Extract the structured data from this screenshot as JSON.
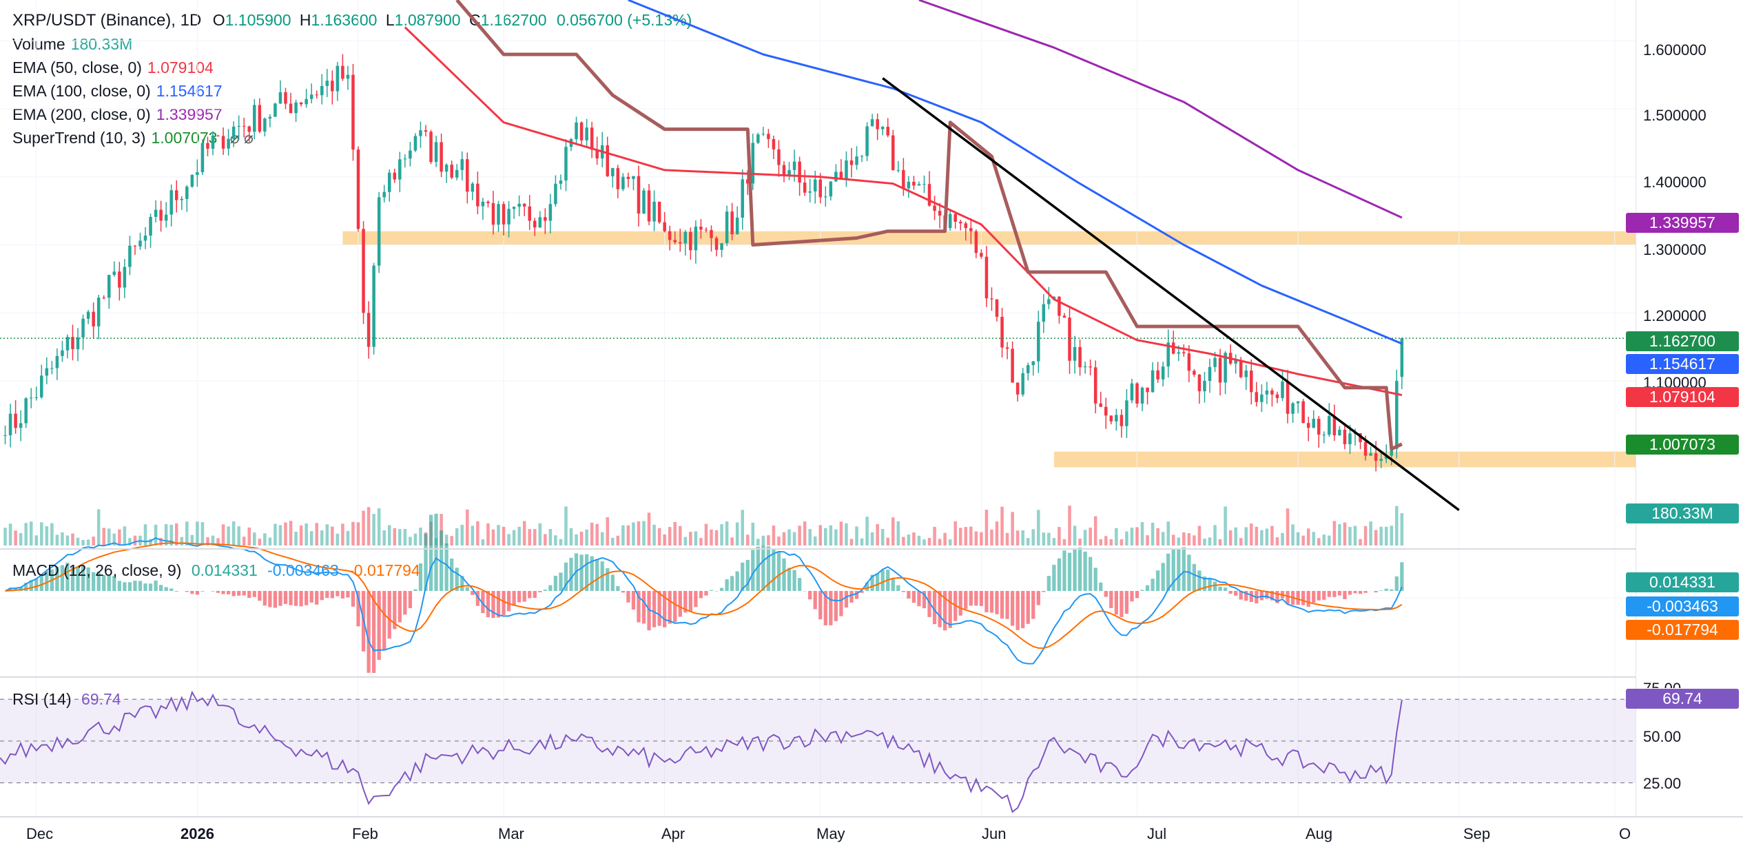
{
  "header": {
    "symbol_title": "XRP/USDT (Binance), 1D",
    "open_label": "O",
    "open": "1.105900",
    "high_label": "H",
    "high": "1.163600",
    "low_label": "L",
    "low": "1.087900",
    "close_label": "C",
    "close": "1.162700",
    "change": "0.056700 (+5.13%)"
  },
  "legend": {
    "volume": {
      "label": "Volume",
      "value": "180.33M",
      "color": "#26a69a"
    },
    "ema50": {
      "label": "EMA (50, close, 0)",
      "value": "1.079104",
      "color": "#f23645"
    },
    "ema100": {
      "label": "EMA (100, close, 0)",
      "value": "1.154617",
      "color": "#2962ff"
    },
    "ema200": {
      "label": "EMA (200, close, 0)",
      "value": "1.339957",
      "color": "#9c27b0"
    },
    "supertrend": {
      "label": "SuperTrend (10, 3)",
      "value": "1.007073",
      "color": "#1b8c2c",
      "icons": "⌀ ⌀"
    },
    "macd": {
      "label": "MACD (12, 26, close, 9)",
      "hist": "0.014331",
      "macd": "-0.003463",
      "signal": "-0.017794"
    },
    "rsi": {
      "label": "RSI (14)",
      "value": "69.74"
    }
  },
  "price_axis": [
    "1.600000",
    "1.500000",
    "1.400000",
    "1.300000",
    "1.200000",
    "1.100000"
  ],
  "price_tags": {
    "ema200": "1.339957",
    "close": "1.162700",
    "ema100": "1.154617",
    "ema50": "1.079104",
    "supertrend": "1.007073",
    "volume": "180.33M"
  },
  "macd_tags": {
    "hist": "0.014331",
    "macd": "-0.003463",
    "signal": "-0.017794"
  },
  "rsi_axis": [
    "75.00",
    "50.00",
    "25.00"
  ],
  "rsi_tag": "69.74",
  "time_axis": [
    "Dec",
    "2026",
    "Feb",
    "Mar",
    "Apr",
    "May",
    "Jun",
    "Jul",
    "Aug",
    "Sep",
    "O"
  ],
  "colors": {
    "up": "#26a69a",
    "down": "#f23645",
    "ema50": "#f23645",
    "ema100": "#2962ff",
    "ema200": "#9c27b0",
    "supertrend_up": "#6aa83d",
    "supertrend_down": "#a85c5c",
    "zone": "#fcd290",
    "macd_line": "#2196f3",
    "signal_line": "#ff6d00",
    "rsi_line": "#7e57c2"
  },
  "chart_data": [
    {
      "type": "candlestick",
      "title": "XRP/USDT (Binance), 1D",
      "ylim": [
        0.86,
        1.66
      ],
      "x_range": [
        "2025-11-24",
        "2026-10-05"
      ],
      "last_candle": {
        "date": "2026-08-21",
        "open": 1.1059,
        "high": 1.1636,
        "low": 1.0879,
        "close": 1.1627
      },
      "ohlc_anchors": [
        {
          "date": "2025-11-25",
          "close": 1.02
        },
        {
          "date": "2026-01-05",
          "close": 1.46
        },
        {
          "date": "2026-01-30",
          "close": 1.55
        },
        {
          "date": "2026-02-02",
          "close": 1.2
        },
        {
          "date": "2026-02-03",
          "close": 1.15
        },
        {
          "date": "2026-02-05",
          "close": 1.37
        },
        {
          "date": "2026-02-12",
          "close": 1.46
        },
        {
          "date": "2026-02-20",
          "close": 1.41
        },
        {
          "date": "2026-03-01",
          "close": 1.33
        },
        {
          "date": "2026-03-10",
          "close": 1.36
        },
        {
          "date": "2026-03-15",
          "close": 1.48
        },
        {
          "date": "2026-03-18",
          "close": 1.44
        },
        {
          "date": "2026-03-24",
          "close": 1.4
        },
        {
          "date": "2026-04-01",
          "close": 1.32
        },
        {
          "date": "2026-04-10",
          "close": 1.31
        },
        {
          "date": "2026-04-15",
          "close": 1.34
        },
        {
          "date": "2026-04-18",
          "close": 1.45
        },
        {
          "date": "2026-04-25",
          "close": 1.41
        },
        {
          "date": "2026-05-01",
          "close": 1.37
        },
        {
          "date": "2026-05-08",
          "close": 1.43
        },
        {
          "date": "2026-05-12",
          "close": 1.47
        },
        {
          "date": "2026-05-16",
          "close": 1.41
        },
        {
          "date": "2026-05-23",
          "close": 1.35
        },
        {
          "date": "2026-05-30",
          "close": 1.32
        },
        {
          "date": "2026-06-03",
          "close": 1.22
        },
        {
          "date": "2026-06-08",
          "close": 1.08
        },
        {
          "date": "2026-06-14",
          "close": 1.22
        },
        {
          "date": "2026-06-20",
          "close": 1.12
        },
        {
          "date": "2026-06-27",
          "close": 1.05
        },
        {
          "date": "2026-07-02",
          "close": 1.09
        },
        {
          "date": "2026-07-08",
          "close": 1.14
        },
        {
          "date": "2026-07-14",
          "close": 1.1
        },
        {
          "date": "2026-07-20",
          "close": 1.13
        },
        {
          "date": "2026-07-25",
          "close": 1.08
        },
        {
          "date": "2026-08-01",
          "close": 1.07
        },
        {
          "date": "2026-08-08",
          "close": 1.02
        },
        {
          "date": "2026-08-14",
          "close": 0.99
        },
        {
          "date": "2026-08-18",
          "close": 0.99
        },
        {
          "date": "2026-08-19",
          "close": 1.0
        },
        {
          "date": "2026-08-20",
          "close": 1.1
        },
        {
          "date": "2026-08-21",
          "close": 1.1627
        }
      ]
    },
    {
      "type": "line",
      "series": [
        {
          "name": "EMA (50, close, 0)",
          "points": [
            [
              "2026-02-10",
              1.62
            ],
            [
              "2026-03-01",
              1.48
            ],
            [
              "2026-04-01",
              1.41
            ],
            [
              "2026-05-01",
              1.4
            ],
            [
              "2026-05-15",
              1.39
            ],
            [
              "2026-06-01",
              1.33
            ],
            [
              "2026-06-15",
              1.22
            ],
            [
              "2026-07-01",
              1.16
            ],
            [
              "2026-07-15",
              1.14
            ],
            [
              "2026-08-01",
              1.11
            ],
            [
              "2026-08-21",
              1.079104
            ]
          ]
        },
        {
          "name": "EMA (100, close, 0)",
          "points": [
            [
              "2026-03-25",
              1.66
            ],
            [
              "2026-04-20",
              1.58
            ],
            [
              "2026-05-15",
              1.53
            ],
            [
              "2026-06-01",
              1.48
            ],
            [
              "2026-06-20",
              1.39
            ],
            [
              "2026-07-10",
              1.3
            ],
            [
              "2026-07-25",
              1.24
            ],
            [
              "2026-08-10",
              1.19
            ],
            [
              "2026-08-21",
              1.154617
            ]
          ]
        },
        {
          "name": "EMA (200, close, 0)",
          "points": [
            [
              "2026-05-20",
              1.66
            ],
            [
              "2026-06-15",
              1.59
            ],
            [
              "2026-07-10",
              1.51
            ],
            [
              "2026-08-01",
              1.41
            ],
            [
              "2026-08-21",
              1.339957
            ]
          ]
        },
        {
          "name": "SuperTrend (10, 3)",
          "points": [
            [
              "2026-02-20",
              1.66
            ],
            [
              "2026-03-01",
              1.58
            ],
            [
              "2026-03-15",
              1.58
            ],
            [
              "2026-03-22",
              1.52
            ],
            [
              "2026-04-01",
              1.47
            ],
            [
              "2026-04-17",
              1.47
            ],
            [
              "2026-04-18",
              1.3
            ],
            [
              "2026-05-08",
              1.31
            ],
            [
              "2026-05-14",
              1.32
            ],
            [
              "2026-05-25",
              1.32
            ],
            [
              "2026-05-26",
              1.48
            ],
            [
              "2026-06-03",
              1.43
            ],
            [
              "2026-06-10",
              1.26
            ],
            [
              "2026-06-25",
              1.26
            ],
            [
              "2026-07-01",
              1.18
            ],
            [
              "2026-08-01",
              1.18
            ],
            [
              "2026-08-10",
              1.09
            ],
            [
              "2026-08-18",
              1.09
            ],
            [
              "2026-08-19",
              1.0
            ],
            [
              "2026-08-21",
              1.007073
            ]
          ]
        }
      ],
      "trendline": [
        [
          "2026-05-13",
          1.545
        ],
        [
          "2026-09-01",
          0.91
        ]
      ],
      "zones": [
        {
          "from": "2026-01-29",
          "to": "2026-10-05",
          "low": 1.3,
          "high": 1.32
        },
        {
          "from": "2026-06-15",
          "to": "2026-10-05",
          "low": 0.973,
          "high": 0.996
        }
      ]
    },
    {
      "type": "bar",
      "name": "Volume",
      "value_last": "180.33M",
      "note": "volume bars colored by candle direction"
    },
    {
      "type": "line",
      "name": "MACD (12, 26, close, 9)",
      "series": [
        {
          "name": "MACD",
          "last": -0.003463
        },
        {
          "name": "Signal",
          "last": -0.017794
        },
        {
          "name": "Histogram",
          "last": 0.014331
        }
      ]
    },
    {
      "type": "line",
      "name": "RSI (14)",
      "ylim": [
        15,
        80
      ],
      "bands": [
        30,
        50,
        70
      ],
      "last": 69.74,
      "anchors": [
        [
          "2025-11-24",
          42
        ],
        [
          "2026-01-04",
          72
        ],
        [
          "2026-01-10",
          57
        ],
        [
          "2026-02-01",
          35
        ],
        [
          "2026-02-03",
          20
        ],
        [
          "2026-02-15",
          42
        ],
        [
          "2026-03-15",
          50
        ],
        [
          "2026-04-01",
          40
        ],
        [
          "2026-04-15",
          48
        ],
        [
          "2026-05-10",
          55
        ],
        [
          "2026-06-08",
          18
        ],
        [
          "2026-06-14",
          50
        ],
        [
          "2026-06-28",
          33
        ],
        [
          "2026-07-05",
          52
        ],
        [
          "2026-07-20",
          48
        ],
        [
          "2026-08-10",
          35
        ],
        [
          "2026-08-19",
          34
        ],
        [
          "2026-08-21",
          69.74
        ]
      ]
    }
  ]
}
